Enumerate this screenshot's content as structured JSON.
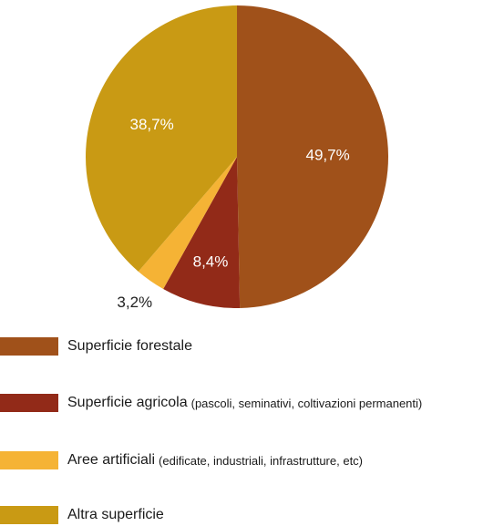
{
  "chart_data": {
    "type": "pie",
    "start": "12 o'clock",
    "direction": "clockwise",
    "slices": [
      {
        "name": "Superficie forestale",
        "value": 49.7,
        "label": "49,7%",
        "color": "#A0511A",
        "label_placement": "inside"
      },
      {
        "name": "Superficie agricola",
        "value": 8.4,
        "label": "8,4%",
        "color": "#922A18",
        "label_placement": "inside"
      },
      {
        "name": "Aree artificiali",
        "value": 3.2,
        "label": "3,2%",
        "color": "#F5B335",
        "label_placement": "outside"
      },
      {
        "name": "Altra superficie",
        "value": 38.7,
        "label": "38,7%",
        "color": "#C99A14",
        "label_placement": "inside"
      }
    ],
    "legend_placement": "bottom",
    "legend": [
      {
        "label": "Superficie forestale",
        "detail": "",
        "color": "#A0511A"
      },
      {
        "label": "Superficie agricola",
        "detail": "(pascoli, seminativi, coltivazioni permanenti)",
        "color": "#922A18"
      },
      {
        "label": "Aree artificiali",
        "detail": "(edificate, industriali, infrastrutture, etc)",
        "color": "#F5B335"
      },
      {
        "label": "Altra superficie",
        "detail": "",
        "color": "#C99A14"
      }
    ]
  }
}
